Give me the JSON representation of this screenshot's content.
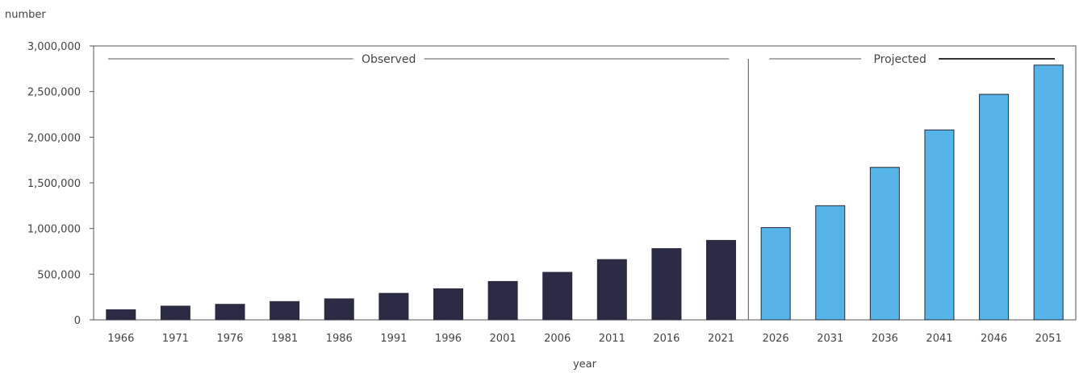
{
  "chart_data": {
    "type": "bar",
    "ylabel": "number",
    "xlabel": "year",
    "ylim": [
      0,
      3000000
    ],
    "yticks": [
      0,
      500000,
      1000000,
      1500000,
      2000000,
      2500000,
      3000000
    ],
    "ytick_labels": [
      "0",
      "500,000",
      "1,000,000",
      "1,500,000",
      "2,000,000",
      "2,500,000",
      "3,000,000"
    ],
    "categories": [
      "1966",
      "1971",
      "1976",
      "1981",
      "1986",
      "1991",
      "1996",
      "2001",
      "2006",
      "2011",
      "2016",
      "2021",
      "2026",
      "2031",
      "2036",
      "2041",
      "2046",
      "2051"
    ],
    "series": [
      {
        "name": "Observed",
        "color": "#2b2b45",
        "values": [
          110000,
          150000,
          170000,
          200000,
          230000,
          290000,
          340000,
          420000,
          520000,
          660000,
          780000,
          870000,
          null,
          null,
          null,
          null,
          null,
          null
        ]
      },
      {
        "name": "Projected",
        "color": "#56b4e9",
        "values": [
          null,
          null,
          null,
          null,
          null,
          null,
          null,
          null,
          null,
          null,
          null,
          null,
          1010000,
          1250000,
          1670000,
          2080000,
          2470000,
          2790000
        ]
      }
    ],
    "periods": {
      "observed_label": "Observed",
      "projected_label": "Projected"
    },
    "grid": false,
    "legend": "none"
  }
}
